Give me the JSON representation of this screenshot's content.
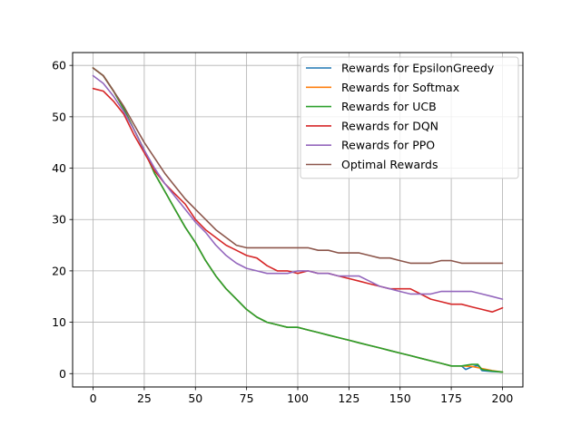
{
  "chart_data": {
    "type": "line",
    "title": "",
    "xlabel": "",
    "ylabel": "",
    "xlim": [
      -10,
      210
    ],
    "ylim": [
      -2.6,
      62.5
    ],
    "xticks": [
      0,
      25,
      50,
      75,
      100,
      125,
      150,
      175,
      200
    ],
    "yticks": [
      0,
      10,
      20,
      30,
      40,
      50,
      60
    ],
    "grid": true,
    "legend_position": "top-right",
    "series": [
      {
        "name": "Rewards for EpsilonGreedy",
        "color": "#1f77b4",
        "x": [
          0,
          5,
          10,
          15,
          20,
          25,
          30,
          35,
          40,
          45,
          50,
          55,
          60,
          65,
          70,
          75,
          80,
          85,
          90,
          95,
          100,
          105,
          110,
          115,
          120,
          125,
          130,
          135,
          140,
          145,
          150,
          155,
          160,
          165,
          170,
          175,
          180,
          182,
          185,
          188,
          190,
          195,
          200
        ],
        "y": [
          59.5,
          58.0,
          55.0,
          51.5,
          47.5,
          43.5,
          39.0,
          35.5,
          32.0,
          28.5,
          25.5,
          22.0,
          19.0,
          16.5,
          14.5,
          12.5,
          11.0,
          10.0,
          9.5,
          9.0,
          9.0,
          8.5,
          8.0,
          7.5,
          7.0,
          6.5,
          6.0,
          5.5,
          5.0,
          4.5,
          4.0,
          3.5,
          3.0,
          2.5,
          2.0,
          1.5,
          1.5,
          0.8,
          1.3,
          1.6,
          0.6,
          0.4,
          0.3
        ]
      },
      {
        "name": "Rewards for Softmax",
        "color": "#ff7f0e",
        "x": [
          0,
          5,
          10,
          15,
          20,
          25,
          30,
          35,
          40,
          45,
          50,
          55,
          60,
          65,
          70,
          75,
          80,
          85,
          90,
          95,
          100,
          105,
          110,
          115,
          120,
          125,
          130,
          135,
          140,
          145,
          150,
          155,
          160,
          165,
          170,
          175,
          180,
          185,
          190,
          195,
          200
        ],
        "y": [
          59.5,
          58.0,
          55.0,
          51.5,
          47.5,
          43.5,
          39.0,
          35.5,
          32.0,
          28.5,
          25.5,
          22.0,
          19.0,
          16.5,
          14.5,
          12.5,
          11.0,
          10.0,
          9.5,
          9.0,
          9.0,
          8.5,
          8.0,
          7.5,
          7.0,
          6.5,
          6.0,
          5.5,
          5.0,
          4.5,
          4.0,
          3.5,
          3.0,
          2.5,
          2.0,
          1.5,
          1.5,
          1.4,
          1.0,
          0.6,
          0.3
        ]
      },
      {
        "name": "Rewards for UCB",
        "color": "#2ca02c",
        "x": [
          0,
          5,
          10,
          15,
          20,
          25,
          30,
          35,
          40,
          45,
          50,
          55,
          60,
          65,
          70,
          75,
          80,
          85,
          90,
          95,
          100,
          105,
          110,
          115,
          120,
          125,
          130,
          135,
          140,
          145,
          150,
          155,
          160,
          165,
          170,
          175,
          180,
          185,
          188,
          190,
          195,
          200
        ],
        "y": [
          59.5,
          58.0,
          55.0,
          51.5,
          47.5,
          43.5,
          39.0,
          35.5,
          32.0,
          28.5,
          25.5,
          22.0,
          19.0,
          16.5,
          14.5,
          12.5,
          11.0,
          10.0,
          9.5,
          9.0,
          9.0,
          8.5,
          8.0,
          7.5,
          7.0,
          6.5,
          6.0,
          5.5,
          5.0,
          4.5,
          4.0,
          3.5,
          3.0,
          2.5,
          2.0,
          1.5,
          1.5,
          1.8,
          1.8,
          0.8,
          0.5,
          0.3
        ]
      },
      {
        "name": "Rewards for DQN",
        "color": "#d62728",
        "x": [
          0,
          5,
          10,
          15,
          20,
          25,
          30,
          35,
          40,
          45,
          50,
          55,
          60,
          65,
          70,
          75,
          80,
          85,
          90,
          95,
          100,
          105,
          110,
          115,
          120,
          125,
          130,
          135,
          140,
          145,
          150,
          155,
          160,
          165,
          170,
          175,
          180,
          185,
          190,
          195,
          200
        ],
        "y": [
          55.5,
          55.0,
          53.0,
          50.5,
          46.5,
          43.0,
          39.5,
          37.0,
          35.0,
          33.0,
          30.0,
          28.0,
          26.5,
          25.0,
          24.0,
          23.0,
          22.5,
          21.0,
          20.0,
          20.0,
          19.5,
          20.0,
          19.5,
          19.5,
          19.0,
          18.5,
          18.0,
          17.5,
          17.0,
          16.5,
          16.5,
          16.5,
          15.5,
          14.5,
          14.0,
          13.5,
          13.5,
          13.0,
          12.5,
          12.0,
          12.8
        ]
      },
      {
        "name": "Rewards for PPO",
        "color": "#9467bd",
        "x": [
          0,
          5,
          10,
          15,
          20,
          25,
          30,
          35,
          40,
          45,
          50,
          55,
          60,
          65,
          70,
          75,
          80,
          85,
          90,
          95,
          100,
          105,
          110,
          115,
          120,
          125,
          130,
          135,
          140,
          145,
          150,
          155,
          160,
          165,
          170,
          175,
          180,
          185,
          190,
          195,
          200
        ],
        "y": [
          58.0,
          56.5,
          54.0,
          51.0,
          47.5,
          43.5,
          40.0,
          37.0,
          34.5,
          32.0,
          29.5,
          27.5,
          25.0,
          23.0,
          21.5,
          20.5,
          20.0,
          19.5,
          19.5,
          19.5,
          20.0,
          20.0,
          19.5,
          19.5,
          19.0,
          19.0,
          19.0,
          18.0,
          17.0,
          16.5,
          16.0,
          15.5,
          15.5,
          15.5,
          16.0,
          16.0,
          16.0,
          16.0,
          15.5,
          15.0,
          14.5
        ]
      },
      {
        "name": "Optimal Rewards",
        "color": "#8c564b",
        "x": [
          0,
          5,
          10,
          15,
          20,
          25,
          30,
          35,
          40,
          45,
          50,
          55,
          60,
          65,
          70,
          75,
          80,
          85,
          90,
          95,
          100,
          105,
          110,
          115,
          120,
          125,
          130,
          135,
          140,
          145,
          150,
          155,
          160,
          165,
          170,
          175,
          180,
          185,
          190,
          195,
          200
        ],
        "y": [
          59.5,
          58.0,
          55.0,
          52.0,
          48.5,
          45.0,
          42.0,
          39.0,
          36.5,
          34.0,
          32.0,
          30.0,
          28.0,
          26.5,
          25.0,
          24.5,
          24.5,
          24.5,
          24.5,
          24.5,
          24.5,
          24.5,
          24.0,
          24.0,
          23.5,
          23.5,
          23.5,
          23.0,
          22.5,
          22.5,
          22.0,
          21.5,
          21.5,
          21.5,
          22.0,
          22.0,
          21.5,
          21.5,
          21.5,
          21.5,
          21.5
        ]
      }
    ]
  }
}
